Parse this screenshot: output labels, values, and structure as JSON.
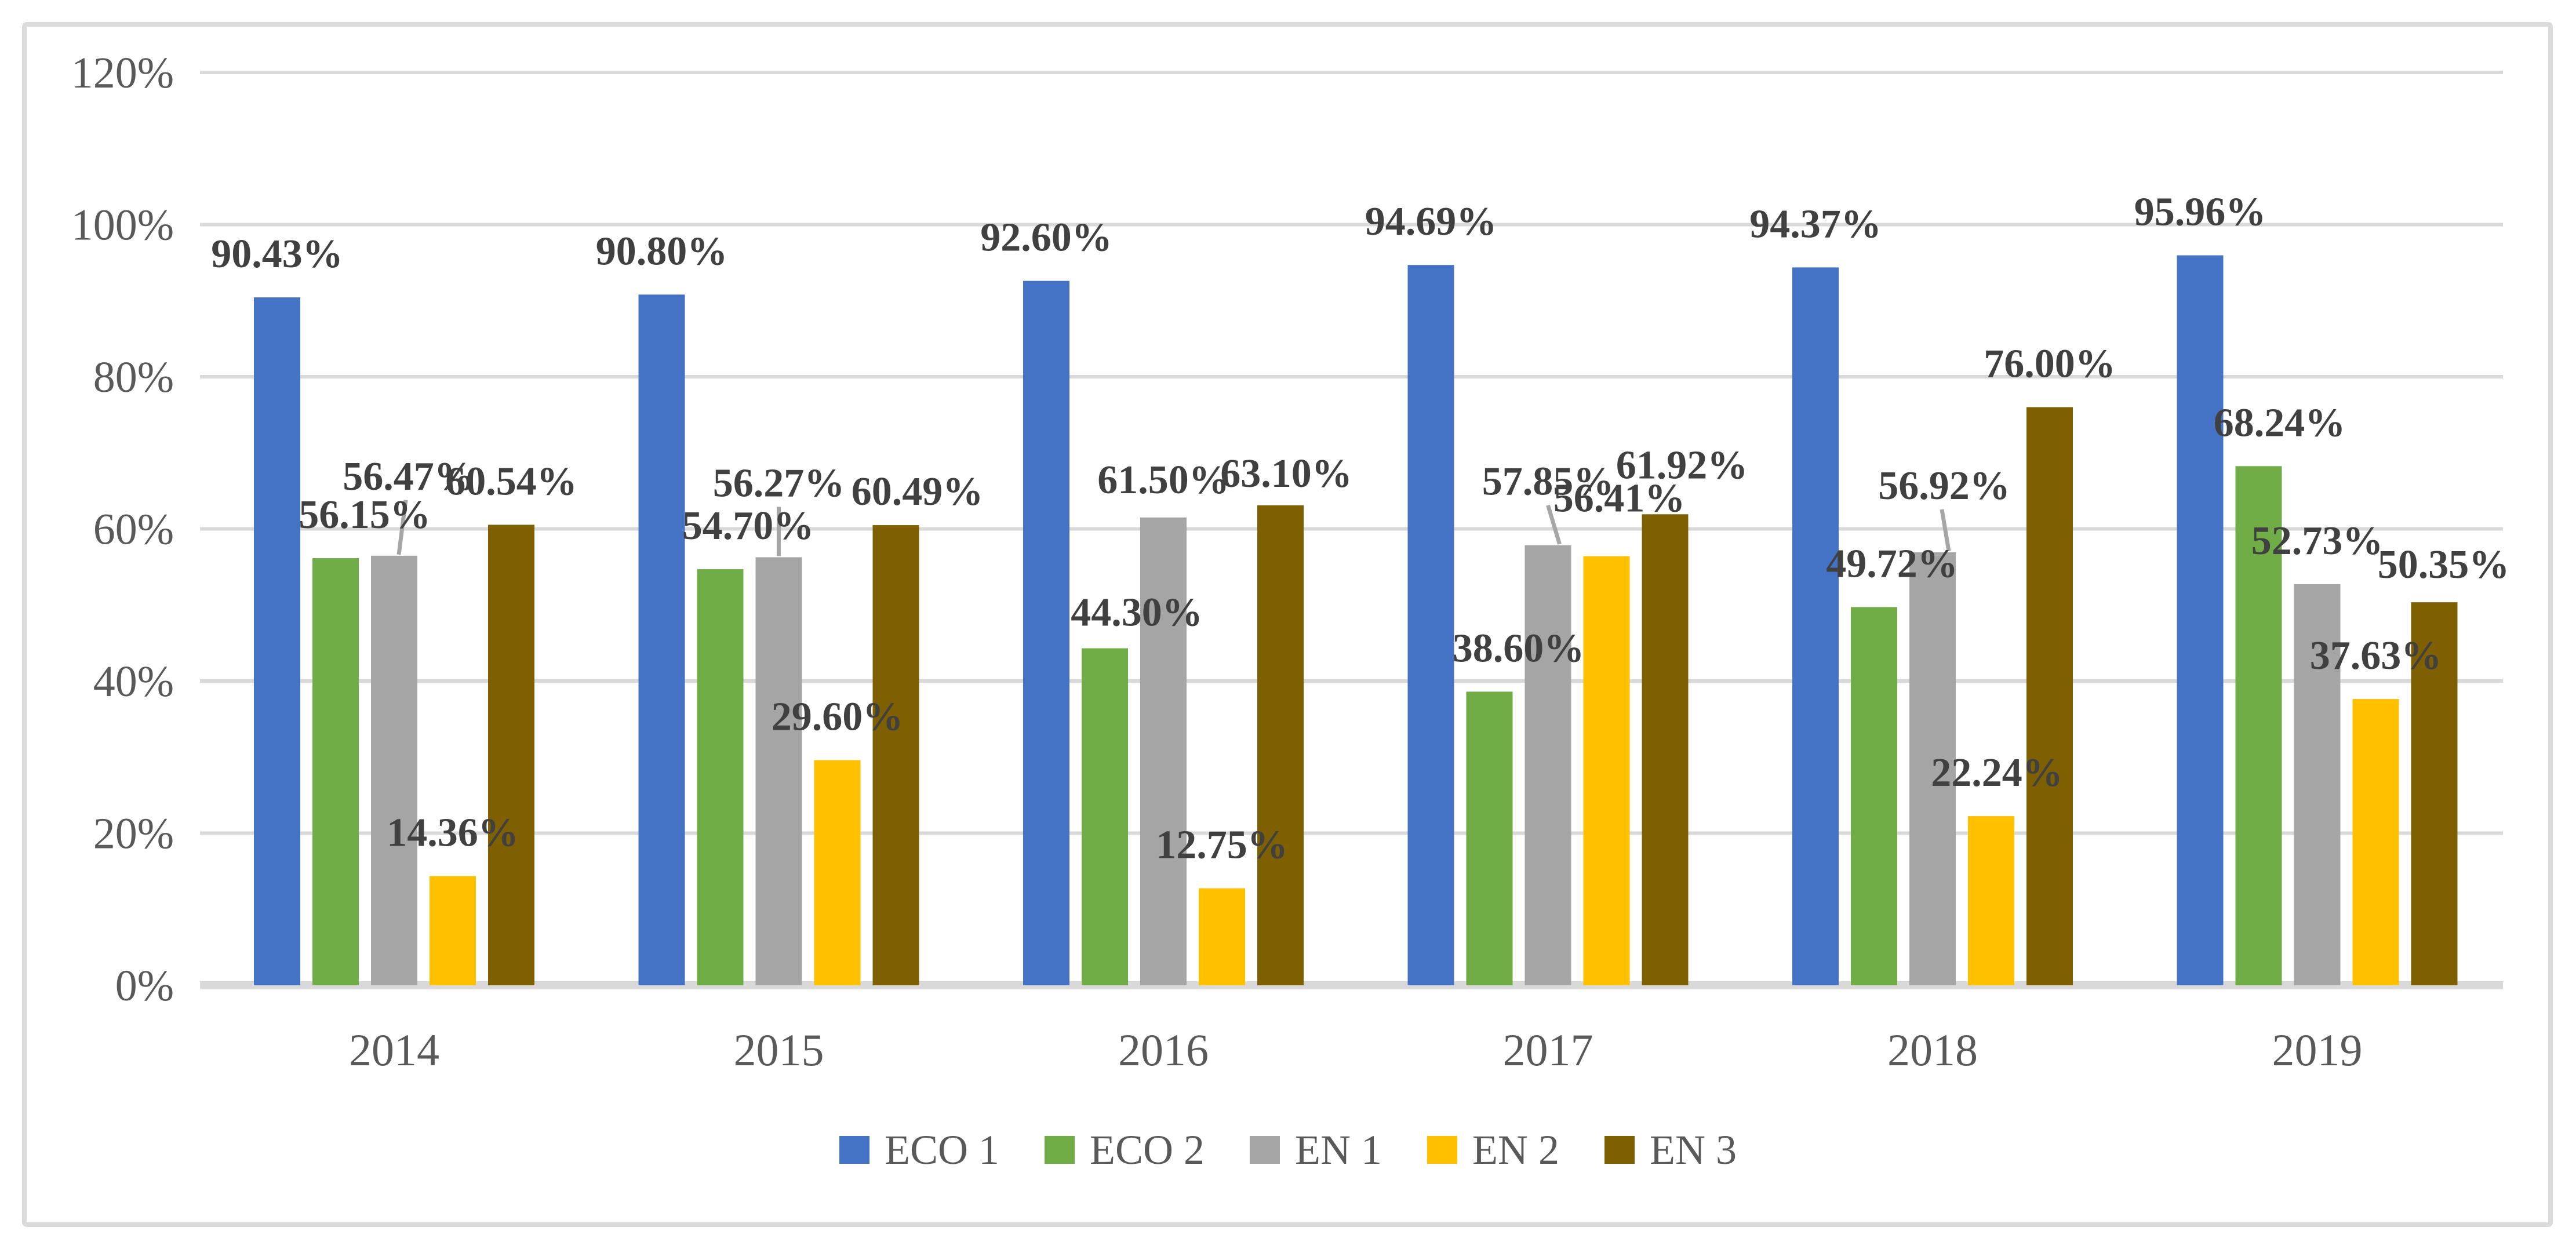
{
  "chart_data": {
    "type": "bar",
    "title": "",
    "xlabel": "",
    "ylabel": "",
    "categories": [
      "2014",
      "2015",
      "2016",
      "2017",
      "2018",
      "2019"
    ],
    "series": [
      {
        "name": "ECO 1",
        "color": "#4472C4",
        "values": [
          90.43,
          90.8,
          92.6,
          94.69,
          94.37,
          95.96
        ]
      },
      {
        "name": "ECO 2",
        "color": "#70AD47",
        "values": [
          56.15,
          54.7,
          44.3,
          38.6,
          49.72,
          68.24
        ]
      },
      {
        "name": "EN 1",
        "color": "#A5A5A5",
        "values": [
          56.47,
          56.27,
          61.5,
          57.85,
          56.92,
          52.73
        ]
      },
      {
        "name": "EN 2",
        "color": "#FFC000",
        "values": [
          14.36,
          29.6,
          12.75,
          56.41,
          22.24,
          37.63
        ]
      },
      {
        "name": "EN 3",
        "color": "#7F6000",
        "values": [
          60.54,
          60.49,
          63.1,
          61.92,
          76.0,
          50.35
        ]
      }
    ],
    "data_label_format": "0.00%",
    "y_axis": {
      "min": 0,
      "max": 120,
      "step": 20,
      "ticks": [
        "0%",
        "20%",
        "40%",
        "60%",
        "80%",
        "100%",
        "120%"
      ]
    },
    "grid": true,
    "legend_position": "bottom",
    "label_layout_hints": {
      "1-0": {
        "dx": 50
      },
      "1-1": {
        "dx": 48
      },
      "1-2": {
        "dx": 55,
        "dy": 13
      },
      "1-3": {
        "dx": 50
      },
      "1-4": {
        "dx": 31
      },
      "1-5": {
        "dx": 36
      },
      "2-0": {
        "dx": 25,
        "dy": -62,
        "leader": {
          "tdx": -5,
          "bdx": 8
        }
      },
      "2-1": {
        "dx": 0,
        "dy": -53,
        "leader": {
          "tdx": 0,
          "bdx": 0
        }
      },
      "2-2": {
        "dy": 10
      },
      "2-3": {
        "dy": -35,
        "leader": {
          "tdx": 0,
          "bdx": 20
        }
      },
      "2-4": {
        "dx": 20,
        "dy": -40,
        "leader": {
          "tdx": -4,
          "bdx": 28
        }
      },
      "3-3": {
        "dx": 22,
        "dy": -25
      },
      "3-4": {
        "dx": 10
      },
      "4-1": {
        "dx": 37,
        "dy": 17
      },
      "4-2": {
        "dx": 10,
        "dy": 20
      },
      "4-3": {
        "dx": 29,
        "dy": -10
      },
      "4-5": {
        "dx": 16,
        "dy": 10
      }
    }
  },
  "style": {
    "background": "#FFFFFF",
    "frame_border": "#DBDBDB",
    "gridline": "#D9D9D9",
    "axis_line": "#D9D9D9",
    "tick_text": "#595959",
    "data_label_text": "#404040",
    "leader_line": "#A6A6A6"
  }
}
